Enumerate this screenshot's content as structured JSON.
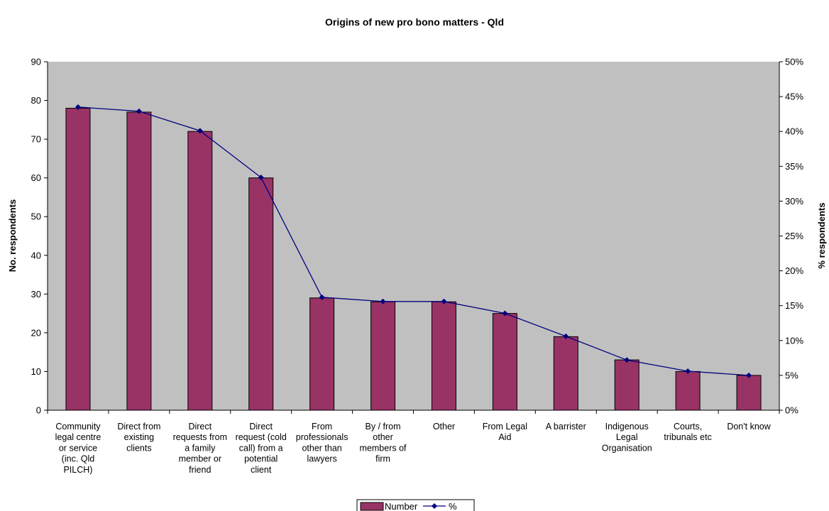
{
  "chart_data": {
    "type": "bar",
    "title": "Origins of new pro bono matters - Qld",
    "ylabel": "No. respondents",
    "y2label": "% respondents",
    "ylim": [
      0,
      90
    ],
    "y2lim": [
      0,
      50
    ],
    "yticks": [
      "0",
      "10",
      "20",
      "30",
      "40",
      "50",
      "60",
      "70",
      "80",
      "90"
    ],
    "y2ticks": [
      "0%",
      "5%",
      "10%",
      "15%",
      "20%",
      "25%",
      "30%",
      "35%",
      "40%",
      "45%",
      "50%"
    ],
    "categories": [
      [
        "Community",
        "legal centre",
        "or service",
        "(inc. Qld",
        "PILCH)"
      ],
      [
        "Direct from",
        "existing",
        "clients"
      ],
      [
        "Direct",
        "requests from",
        "a family",
        "member or",
        "friend"
      ],
      [
        "Direct",
        "request  (cold",
        "call) from a",
        "potential",
        "client"
      ],
      [
        "From",
        "professionals",
        "other than",
        "lawyers"
      ],
      [
        "By / from",
        "other",
        "members of",
        "firm"
      ],
      [
        "Other"
      ],
      [
        "From Legal",
        "Aid"
      ],
      [
        "A barrister"
      ],
      [
        "Indigenous",
        "Legal",
        "Organisation"
      ],
      [
        "Courts,",
        "tribunals etc"
      ],
      [
        "Don't know"
      ]
    ],
    "series": [
      {
        "name": "Number",
        "axis": "left",
        "kind": "bar",
        "color": "#993366",
        "values": [
          78,
          77,
          72,
          60,
          29,
          28,
          28,
          25,
          19,
          13,
          10,
          9
        ]
      },
      {
        "name": "%",
        "axis": "right",
        "kind": "line",
        "color": "#000080",
        "values": [
          43.5,
          42.9,
          40.1,
          33.4,
          16.2,
          15.6,
          15.6,
          13.9,
          10.6,
          7.2,
          5.6,
          5.0
        ]
      }
    ],
    "plot_background": "#c0c0c0",
    "grid": false,
    "legend_position": "bottom"
  }
}
